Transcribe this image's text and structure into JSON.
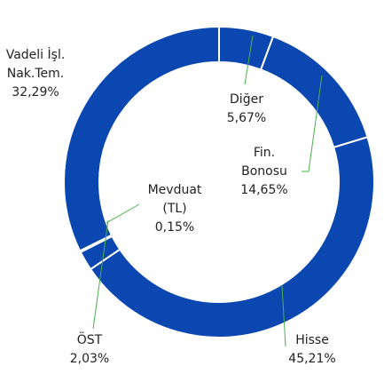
{
  "chart_data": {
    "type": "donut",
    "color": "#0a47b0",
    "categories": [
      [
        "Diğer"
      ],
      [
        "Fin.",
        "Bonosu"
      ],
      [
        "Hisse"
      ],
      [
        "ÖST"
      ],
      [
        "Mevduat",
        "(TL)"
      ],
      [
        "Vadeli İşl.",
        "Nak.Tem."
      ]
    ],
    "values": [
      5.67,
      14.65,
      45.21,
      2.03,
      0.15,
      32.29
    ],
    "value_labels": [
      "5,67%",
      "14,65%",
      "45,21%",
      "2,03%",
      "0,15%",
      "32,29%"
    ]
  }
}
